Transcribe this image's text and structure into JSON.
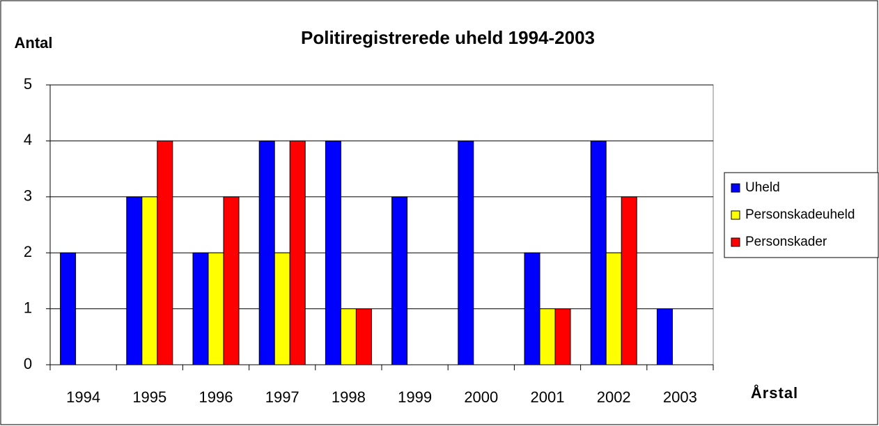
{
  "chart_data": {
    "type": "bar",
    "title": "Politiregistrerede uheld 1994-2003",
    "y_label": "Antal",
    "x_label": "Årstal",
    "categories": [
      "1994",
      "1995",
      "1996",
      "1997",
      "1998",
      "1999",
      "2000",
      "2001",
      "2002",
      "2003"
    ],
    "series": [
      {
        "name": "Uheld",
        "color": "#0000ff",
        "values": [
          2,
          3,
          2,
          4,
          4,
          3,
          4,
          2,
          4,
          1
        ]
      },
      {
        "name": "Personskadeuheld",
        "color": "#ffff00",
        "values": [
          0,
          3,
          2,
          2,
          1,
          0,
          0,
          1,
          2,
          0
        ]
      },
      {
        "name": "Personskader",
        "color": "#ff0000",
        "values": [
          0,
          4,
          3,
          4,
          1,
          0,
          0,
          1,
          3,
          0
        ]
      }
    ],
    "ylim": [
      0,
      5
    ],
    "yticks": [
      0,
      1,
      2,
      3,
      4,
      5
    ],
    "grid": true,
    "legend": "right"
  }
}
